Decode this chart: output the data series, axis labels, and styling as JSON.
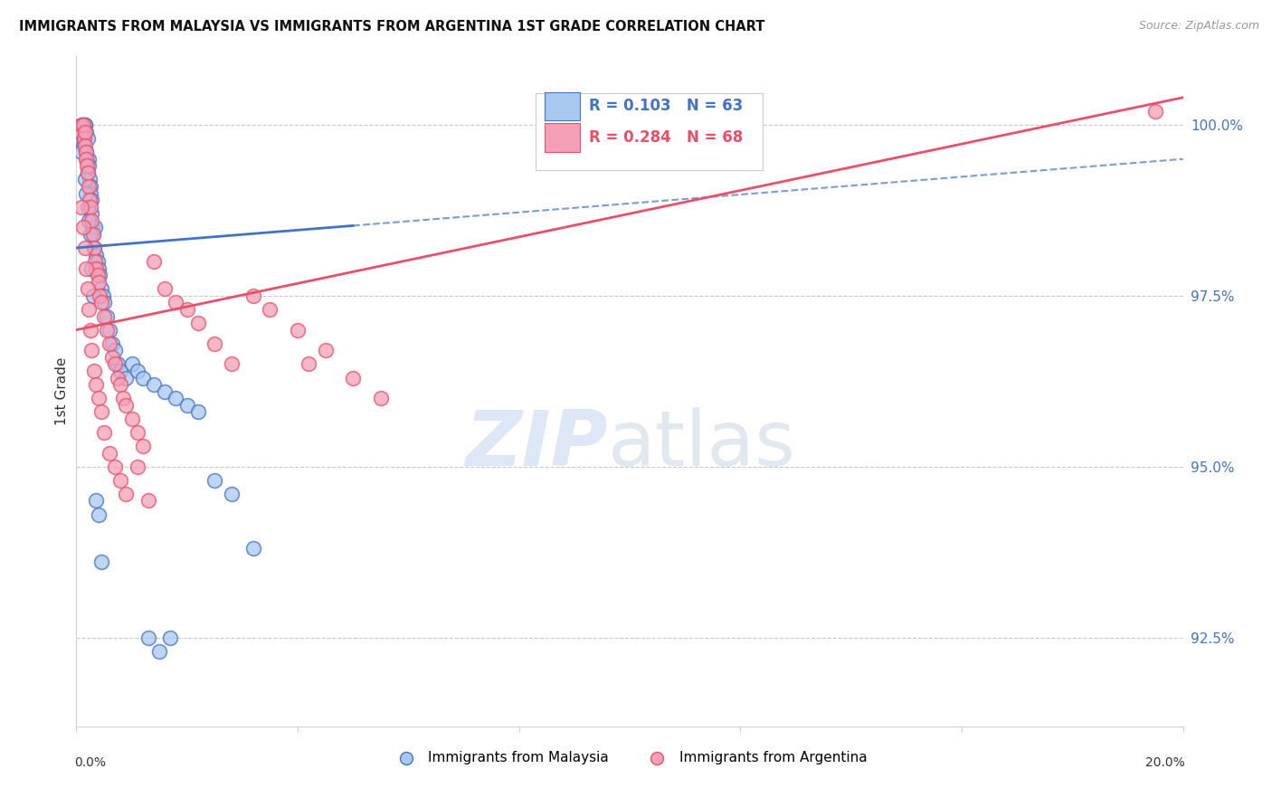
{
  "title": "IMMIGRANTS FROM MALAYSIA VS IMMIGRANTS FROM ARGENTINA 1ST GRADE CORRELATION CHART",
  "source": "Source: ZipAtlas.com",
  "ylabel": "1st Grade",
  "y_ticks": [
    92.5,
    95.0,
    97.5,
    100.0
  ],
  "y_tick_labels": [
    "92.5%",
    "95.0%",
    "97.5%",
    "100.0%"
  ],
  "xlim": [
    0.0,
    20.0
  ],
  "ylim": [
    91.2,
    101.0
  ],
  "legend_r_malaysia": "R = 0.103",
  "legend_n_malaysia": "N = 63",
  "legend_r_argentina": "R = 0.284",
  "legend_n_argentina": "N = 68",
  "color_malaysia": "#A8C8F0",
  "color_argentina": "#F4A0B8",
  "color_malaysia_line": "#4472C4",
  "color_argentina_line": "#E8506A",
  "malaysia_x": [
    0.05,
    0.08,
    0.1,
    0.12,
    0.12,
    0.14,
    0.15,
    0.16,
    0.17,
    0.18,
    0.19,
    0.2,
    0.2,
    0.22,
    0.23,
    0.24,
    0.25,
    0.26,
    0.27,
    0.28,
    0.29,
    0.3,
    0.32,
    0.34,
    0.36,
    0.38,
    0.4,
    0.42,
    0.45,
    0.48,
    0.5,
    0.55,
    0.6,
    0.65,
    0.7,
    0.75,
    0.8,
    0.9,
    1.0,
    1.1,
    1.2,
    1.4,
    1.6,
    1.8,
    2.0,
    2.2,
    2.5,
    2.8,
    3.2,
    0.1,
    0.15,
    0.18,
    0.2,
    0.22,
    0.25,
    0.28,
    0.3,
    0.35,
    0.4,
    0.45,
    1.3,
    1.5,
    1.7
  ],
  "malaysia_y": [
    99.8,
    99.9,
    100.0,
    100.0,
    99.7,
    99.8,
    100.0,
    100.0,
    99.9,
    99.6,
    99.5,
    99.8,
    99.3,
    99.5,
    99.4,
    99.2,
    99.1,
    99.0,
    98.9,
    98.7,
    98.5,
    98.4,
    98.2,
    98.5,
    98.1,
    98.0,
    97.9,
    97.8,
    97.6,
    97.5,
    97.4,
    97.2,
    97.0,
    96.8,
    96.7,
    96.5,
    96.4,
    96.3,
    96.5,
    96.4,
    96.3,
    96.2,
    96.1,
    96.0,
    95.9,
    95.8,
    94.8,
    94.6,
    93.8,
    99.6,
    99.2,
    99.0,
    98.8,
    98.6,
    98.4,
    97.9,
    97.5,
    94.5,
    94.3,
    93.6,
    92.5,
    92.3,
    92.5
  ],
  "argentina_x": [
    0.08,
    0.1,
    0.12,
    0.14,
    0.15,
    0.16,
    0.17,
    0.18,
    0.19,
    0.2,
    0.22,
    0.24,
    0.26,
    0.28,
    0.3,
    0.32,
    0.34,
    0.36,
    0.38,
    0.4,
    0.42,
    0.45,
    0.5,
    0.55,
    0.6,
    0.65,
    0.7,
    0.75,
    0.8,
    0.85,
    0.9,
    1.0,
    1.1,
    1.2,
    1.4,
    1.6,
    1.8,
    2.0,
    2.2,
    2.5,
    2.8,
    3.2,
    3.5,
    4.0,
    4.5,
    5.0,
    5.5,
    0.1,
    0.12,
    0.15,
    0.18,
    0.2,
    0.22,
    0.25,
    0.28,
    0.32,
    0.36,
    0.4,
    0.45,
    0.5,
    0.6,
    0.7,
    0.8,
    0.9,
    1.1,
    1.3,
    4.2,
    19.5
  ],
  "argentina_y": [
    99.9,
    100.0,
    100.0,
    99.8,
    99.9,
    99.7,
    99.6,
    99.5,
    99.4,
    99.3,
    99.1,
    98.9,
    98.8,
    98.6,
    98.4,
    98.2,
    98.0,
    97.9,
    97.8,
    97.7,
    97.5,
    97.4,
    97.2,
    97.0,
    96.8,
    96.6,
    96.5,
    96.3,
    96.2,
    96.0,
    95.9,
    95.7,
    95.5,
    95.3,
    98.0,
    97.6,
    97.4,
    97.3,
    97.1,
    96.8,
    96.5,
    97.5,
    97.3,
    97.0,
    96.7,
    96.3,
    96.0,
    98.8,
    98.5,
    98.2,
    97.9,
    97.6,
    97.3,
    97.0,
    96.7,
    96.4,
    96.2,
    96.0,
    95.8,
    95.5,
    95.2,
    95.0,
    94.8,
    94.6,
    95.0,
    94.5,
    96.5,
    100.2
  ],
  "trend_malaysia_x0": 0.0,
  "trend_malaysia_y0": 98.2,
  "trend_malaysia_x1": 20.0,
  "trend_malaysia_y1": 99.5,
  "trend_argentina_x0": 0.0,
  "trend_argentina_y0": 97.0,
  "trend_argentina_x1": 20.0,
  "trend_argentina_y1": 100.4,
  "dash_malaysia_x0": 5.0,
  "dash_malaysia_x1": 20.0
}
